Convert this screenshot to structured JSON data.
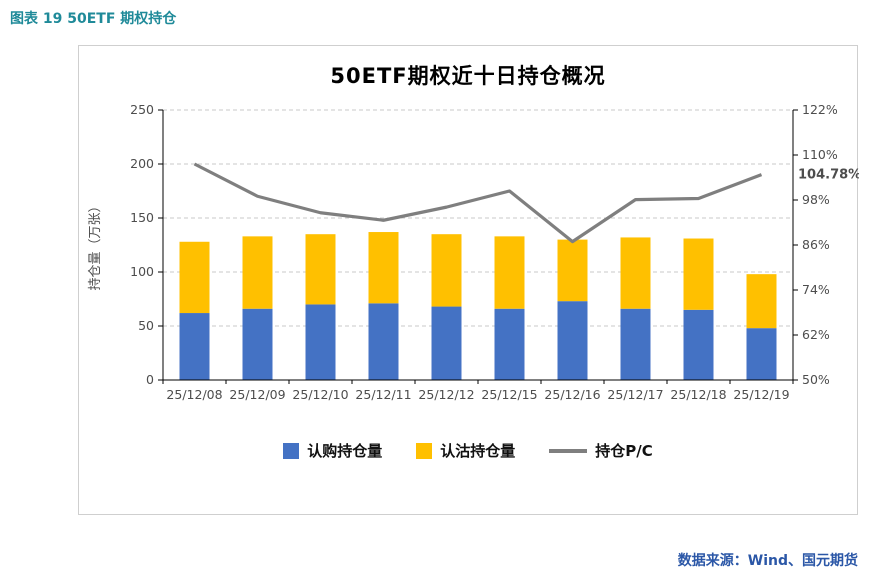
{
  "page": {
    "caption": "图表 19  50ETF 期权持仓",
    "source": "数据来源：Wind、国元期货"
  },
  "colors": {
    "caption": "#1f8a99",
    "source": "#2b57a7",
    "call_bar": "#4472C4",
    "put_bar": "#FFC000",
    "pc_line": "#7F7F7F",
    "annotation": "#FF0000"
  },
  "chart_data": {
    "type": "bar",
    "title": "50ETF期权近十日持仓概况",
    "ylabel_left": "持仓量（万张）",
    "categories": [
      "25/12/08",
      "25/12/09",
      "25/12/10",
      "25/12/11",
      "25/12/12",
      "25/12/15",
      "25/12/16",
      "25/12/17",
      "25/12/18",
      "25/12/19"
    ],
    "series": [
      {
        "name": "认购持仓量",
        "type": "bar",
        "axis": "left",
        "color": "#4472C4",
        "values": [
          62,
          66,
          70,
          71,
          68,
          66,
          73,
          66,
          65,
          48
        ]
      },
      {
        "name": "认沽持仓量",
        "type": "bar",
        "axis": "left",
        "color": "#FFC000",
        "values": [
          66,
          67,
          65,
          66,
          67,
          67,
          57,
          66,
          66,
          50
        ]
      },
      {
        "name": "持仓P/C",
        "type": "line",
        "axis": "right",
        "color": "#7F7F7F",
        "values": [
          107.6,
          99.0,
          94.6,
          92.6,
          96.1,
          100.4,
          86.9,
          98.1,
          98.4,
          104.78
        ]
      }
    ],
    "left_axis": {
      "min": 0,
      "max": 250,
      "ticks": [
        0,
        50,
        100,
        150,
        200,
        250
      ]
    },
    "right_axis": {
      "min": 50,
      "max": 122,
      "ticks": [
        "50%",
        "62%",
        "74%",
        "86%",
        "98%",
        "110%",
        "122%"
      ]
    },
    "annotation": {
      "text": "104.78%",
      "value": 104.78,
      "color": "#FF0000"
    },
    "stacked": true,
    "legend_position": "bottom",
    "grid": "dashed-horizontal"
  }
}
